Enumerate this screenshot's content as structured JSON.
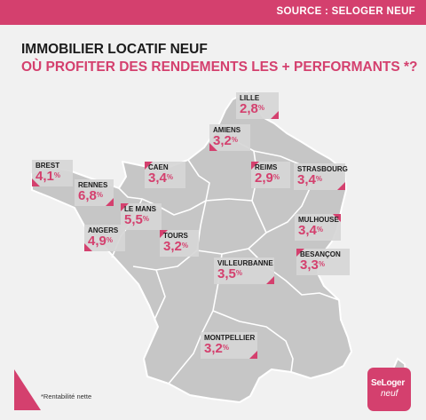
{
  "header": {
    "source": "SOURCE : SELOGER NEUF"
  },
  "title": {
    "line1": "IMMOBILIER LOCATIF NEUF",
    "line2": "OÙ PROFITER DES RENDEMENTS LES + PERFORMANTS *?"
  },
  "cities": [
    {
      "id": "lille",
      "name": "LILLE",
      "value": "2,8",
      "unit": "%"
    },
    {
      "id": "amiens",
      "name": "AMIENS",
      "value": "3,2",
      "unit": "%"
    },
    {
      "id": "brest",
      "name": "BREST",
      "value": "4,1",
      "unit": "%"
    },
    {
      "id": "caen",
      "name": "CAEN",
      "value": "3,4",
      "unit": "%"
    },
    {
      "id": "reims",
      "name": "REIMS",
      "value": "2,9",
      "unit": "%"
    },
    {
      "id": "strasbourg",
      "name": "STRASBOURG",
      "value": "3,4",
      "unit": "%"
    },
    {
      "id": "rennes",
      "name": "RENNES",
      "value": "6,8",
      "unit": "%"
    },
    {
      "id": "le-mans",
      "name": "LE MANS",
      "value": "5,5",
      "unit": "%"
    },
    {
      "id": "angers",
      "name": "ANGERS",
      "value": "4,9",
      "unit": "%"
    },
    {
      "id": "tours",
      "name": "TOURS",
      "value": "3,2",
      "unit": "%"
    },
    {
      "id": "mulhouse",
      "name": "MULHOUSE",
      "value": "3,4",
      "unit": "%"
    },
    {
      "id": "besancon",
      "name": "BESANÇON",
      "value": "3,3",
      "unit": "%"
    },
    {
      "id": "villeurbanne",
      "name": "VILLEURBANNE",
      "value": "3,5",
      "unit": "%"
    },
    {
      "id": "montpellier",
      "name": "MONTPELLIER",
      "value": "3,2",
      "unit": "%"
    }
  ],
  "footnote": "*Rentabilité nette",
  "logo": {
    "line1": "SeLoger",
    "line2": "neuf"
  },
  "colors": {
    "accent": "#d4406e",
    "map_fill": "#c6c6c6",
    "map_border": "#ffffff",
    "card": "#d6d6d6"
  }
}
